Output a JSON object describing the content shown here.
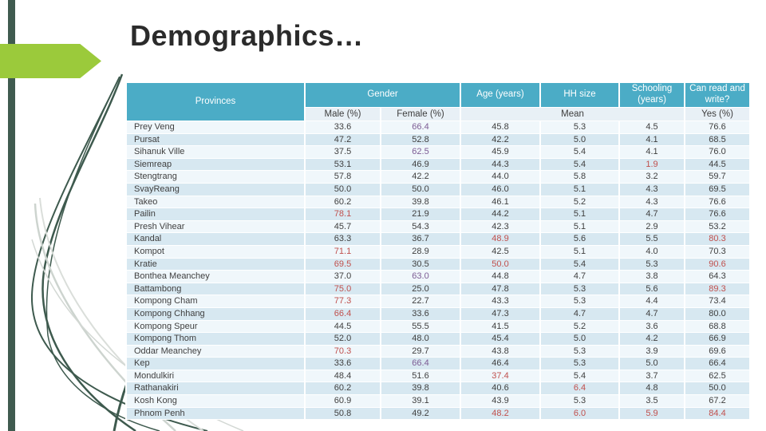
{
  "slide": {
    "title": "Demographics…"
  },
  "colors": {
    "header_bg": "#4BACC6",
    "subheader_bg": "#E8F0F6",
    "band_light": "#F0F7FB",
    "band_blue": "#D7E8F1",
    "accent_green_arrow": "#9BCA3B",
    "accent_dark_green_bar": "#3F5B4F",
    "red": "#C0504D",
    "purple": "#7D5C94"
  },
  "table": {
    "header": {
      "provinces": "Provinces",
      "gender": "Gender",
      "age": "Age (years)",
      "hh": "HH size",
      "schooling": "Schooling (years)",
      "canread": "Can read and write?",
      "male": "Male (%)",
      "female": "Female (%)",
      "mean": "Mean",
      "yes": "Yes (%)"
    },
    "rows": [
      {
        "province": "Prey Veng",
        "values": [
          "33.6",
          "66.4",
          "45.8",
          "5.3",
          "4.5",
          "76.6"
        ],
        "hl": {
          "1": "purple"
        }
      },
      {
        "province": "Pursat",
        "values": [
          "47.2",
          "52.8",
          "42.2",
          "5.0",
          "4.1",
          "68.5"
        ],
        "hl": {}
      },
      {
        "province": "Sihanuk Ville",
        "values": [
          "37.5",
          "62.5",
          "45.9",
          "5.4",
          "4.1",
          "76.0"
        ],
        "hl": {
          "1": "purple"
        }
      },
      {
        "province": "Siemreap",
        "values": [
          "53.1",
          "46.9",
          "44.3",
          "5.4",
          "1.9",
          "44.5"
        ],
        "hl": {
          "4": "red"
        }
      },
      {
        "province": "Stengtrang",
        "values": [
          "57.8",
          "42.2",
          "44.0",
          "5.8",
          "3.2",
          "59.7"
        ],
        "hl": {}
      },
      {
        "province": "SvayReang",
        "values": [
          "50.0",
          "50.0",
          "46.0",
          "5.1",
          "4.3",
          "69.5"
        ],
        "hl": {}
      },
      {
        "province": "Takeo",
        "values": [
          "60.2",
          "39.8",
          "46.1",
          "5.2",
          "4.3",
          "76.6"
        ],
        "hl": {}
      },
      {
        "province": "Pailin",
        "values": [
          "78.1",
          "21.9",
          "44.2",
          "5.1",
          "4.7",
          "76.6"
        ],
        "hl": {
          "0": "red"
        }
      },
      {
        "province": "Presh Vihear",
        "values": [
          "45.7",
          "54.3",
          "42.3",
          "5.1",
          "2.9",
          "53.2"
        ],
        "hl": {}
      },
      {
        "province": "Kandal",
        "values": [
          "63.3",
          "36.7",
          "48.9",
          "5.6",
          "5.5",
          "80.3"
        ],
        "hl": {
          "2": "red",
          "5": "red"
        }
      },
      {
        "province": "Kompot",
        "values": [
          "71.1",
          "28.9",
          "42.5",
          "5.1",
          "4.0",
          "70.3"
        ],
        "hl": {
          "0": "red"
        }
      },
      {
        "province": "Kratie",
        "values": [
          "69.5",
          "30.5",
          "50.0",
          "5.4",
          "5.3",
          "90.6"
        ],
        "hl": {
          "0": "red",
          "2": "red",
          "5": "red"
        }
      },
      {
        "province": "Bonthea Meanchey",
        "values": [
          "37.0",
          "63.0",
          "44.8",
          "4.7",
          "3.8",
          "64.3"
        ],
        "hl": {
          "1": "purple"
        }
      },
      {
        "province": "Battambong",
        "values": [
          "75.0",
          "25.0",
          "47.8",
          "5.3",
          "5.6",
          "89.3"
        ],
        "hl": {
          "0": "red",
          "5": "red"
        }
      },
      {
        "province": "Kompong Cham",
        "values": [
          "77.3",
          "22.7",
          "43.3",
          "5.3",
          "4.4",
          "73.4"
        ],
        "hl": {
          "0": "red"
        }
      },
      {
        "province": "Kompong Chhang",
        "values": [
          "66.4",
          "33.6",
          "47.3",
          "4.7",
          "4.7",
          "80.0"
        ],
        "hl": {
          "0": "red"
        }
      },
      {
        "province": "Kompong Speur",
        "values": [
          "44.5",
          "55.5",
          "41.5",
          "5.2",
          "3.6",
          "68.8"
        ],
        "hl": {}
      },
      {
        "province": "Kompong Thom",
        "values": [
          "52.0",
          "48.0",
          "45.4",
          "5.0",
          "4.2",
          "66.9"
        ],
        "hl": {}
      },
      {
        "province": "Oddar Meanchey",
        "values": [
          "70.3",
          "29.7",
          "43.8",
          "5.3",
          "3.9",
          "69.6"
        ],
        "hl": {
          "0": "red"
        }
      },
      {
        "province": "Kep",
        "values": [
          "33.6",
          "66.4",
          "46.4",
          "5.3",
          "5.0",
          "66.4"
        ],
        "hl": {
          "1": "purple"
        }
      },
      {
        "province": "Mondulkiri",
        "values": [
          "48.4",
          "51.6",
          "37.4",
          "5.4",
          "3.7",
          "62.5"
        ],
        "hl": {
          "2": "red"
        }
      },
      {
        "province": "Rathanakiri",
        "values": [
          "60.2",
          "39.8",
          "40.6",
          "6.4",
          "4.8",
          "50.0"
        ],
        "hl": {
          "3": "red"
        }
      },
      {
        "province": "Kosh Kong",
        "values": [
          "60.9",
          "39.1",
          "43.9",
          "5.3",
          "3.5",
          "67.2"
        ],
        "hl": {}
      },
      {
        "province": "Phnom Penh",
        "values": [
          "50.8",
          "49.2",
          "48.2",
          "6.0",
          "5.9",
          "84.4"
        ],
        "hl": {
          "2": "red",
          "3": "red",
          "4": "red",
          "5": "red"
        }
      }
    ]
  }
}
